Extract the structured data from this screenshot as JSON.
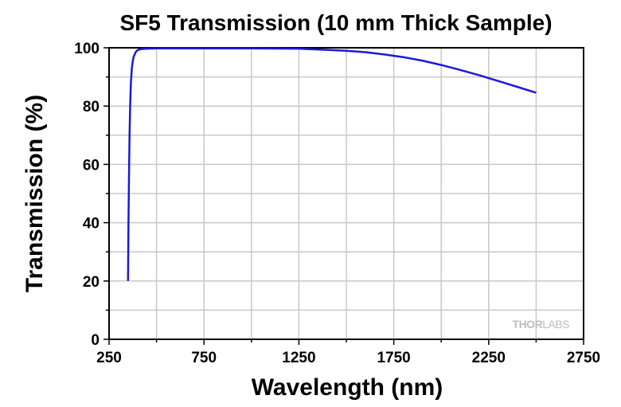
{
  "chart_data": {
    "type": "line",
    "title": "SF5 Transmission (10 mm Thick Sample)",
    "xlabel": "Wavelength (nm)",
    "ylabel": "Transmission (%)",
    "xlim": [
      250,
      2750
    ],
    "ylim": [
      0,
      100
    ],
    "xticks": [
      250,
      750,
      1250,
      1750,
      2250,
      2750
    ],
    "yticks": [
      0,
      20,
      40,
      60,
      80,
      100
    ],
    "grid": true,
    "watermark_left": "THOR",
    "watermark_right": "LABS",
    "line_color": "#1a1ad6",
    "series": [
      {
        "x": [
          350,
          352,
          355,
          358,
          361,
          365,
          370,
          375,
          380,
          390,
          400,
          420,
          450,
          500,
          750,
          1000,
          1250,
          1400,
          1500,
          1600,
          1700,
          1800,
          1900,
          2000,
          2100,
          2200,
          2300,
          2400,
          2500
        ],
        "y": [
          20,
          38,
          55,
          70,
          80,
          88,
          93,
          95.5,
          97,
          98.5,
          99.2,
          99.6,
          99.7,
          99.8,
          99.8,
          99.8,
          99.7,
          99.3,
          99,
          98.5,
          97.7,
          96.8,
          95.6,
          94.1,
          92.4,
          90.6,
          88.6,
          86.6,
          84.6
        ]
      }
    ]
  }
}
